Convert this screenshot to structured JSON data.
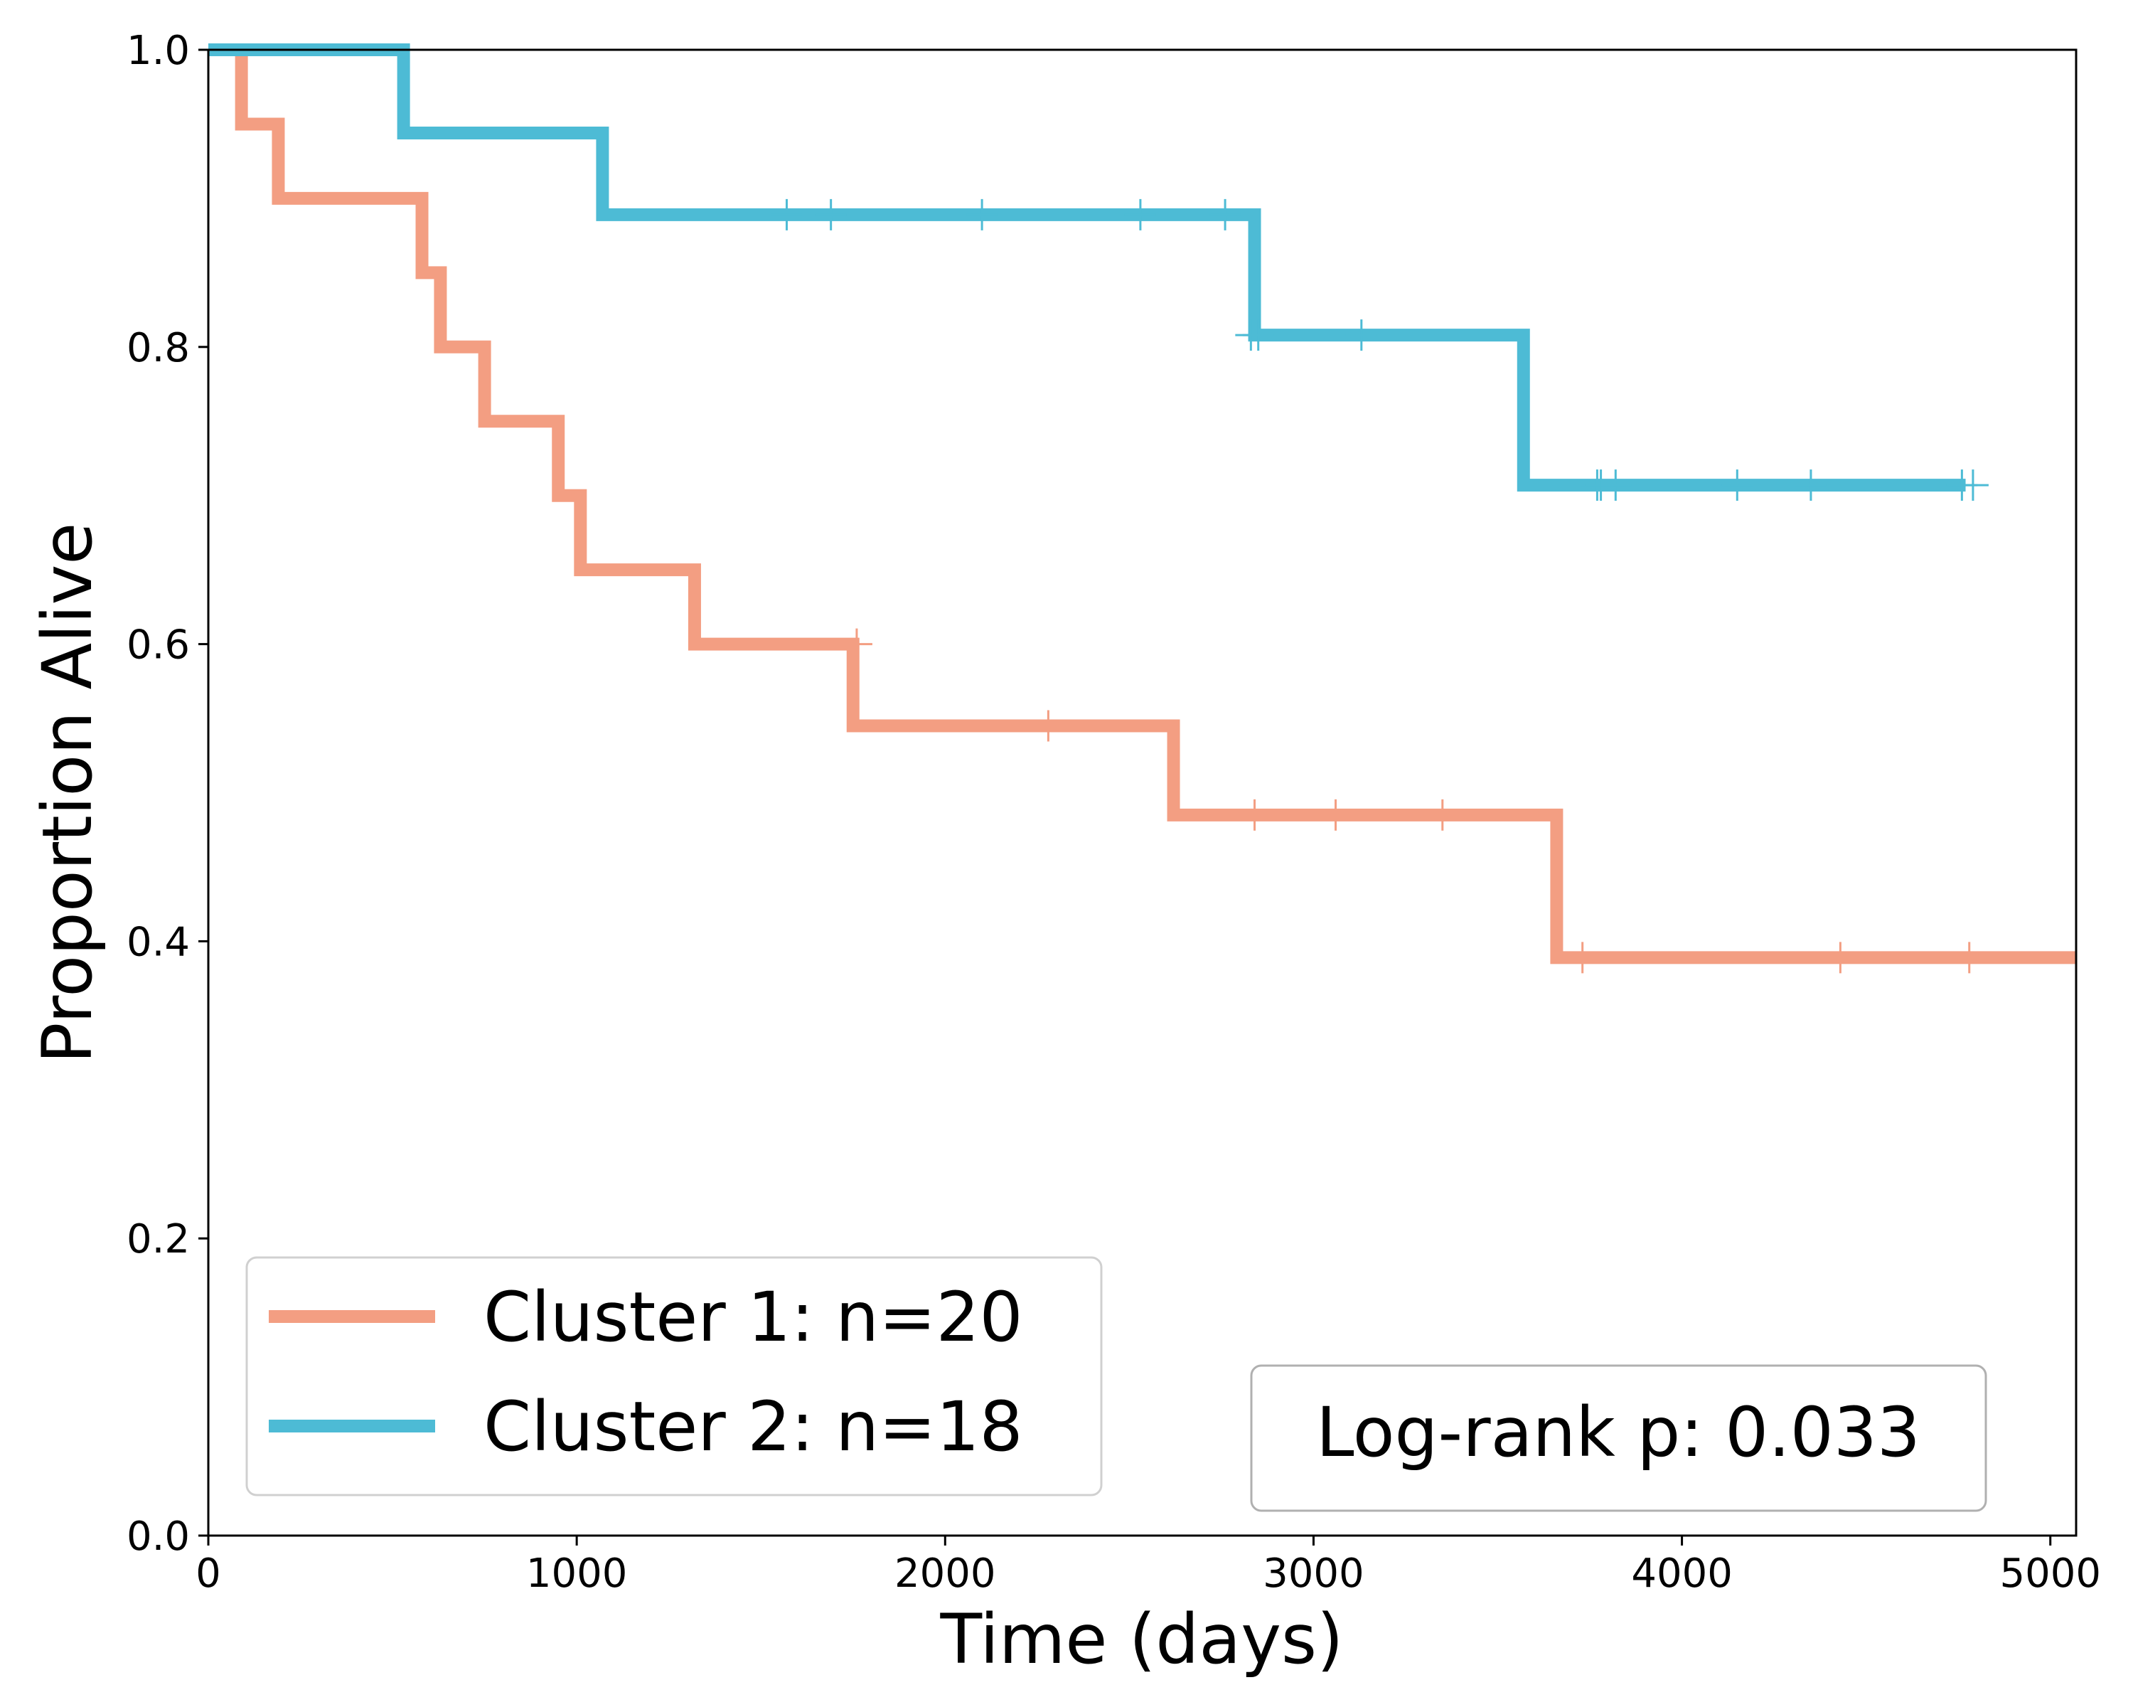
{
  "chart_data": {
    "type": "line",
    "xlabel": "Time (days)",
    "ylabel": "Proportion Alive",
    "xlim": [
      0,
      5070
    ],
    "ylim": [
      0,
      1
    ],
    "x_ticks": [
      0,
      1000,
      2000,
      3000,
      4000,
      5000
    ],
    "y_ticks": [
      0.0,
      0.2,
      0.4,
      0.6,
      0.8,
      1.0
    ],
    "x_tick_labels": [
      "0",
      "1000",
      "2000",
      "3000",
      "4000",
      "5000"
    ],
    "y_tick_labels": [
      "0.0",
      "0.2",
      "0.4",
      "0.6",
      "0.8",
      "1.0"
    ],
    "grid": false,
    "legend_position": "bottom-left",
    "annotation": "Log-rank p: 0.033",
    "series": [
      {
        "name": "Cluster 1: n=20",
        "color": "#f39e82",
        "steps": [
          [
            0,
            1.0
          ],
          [
            90,
            0.95
          ],
          [
            190,
            0.9
          ],
          [
            580,
            0.85
          ],
          [
            630,
            0.8
          ],
          [
            750,
            0.75
          ],
          [
            950,
            0.7
          ],
          [
            1010,
            0.65
          ],
          [
            1320,
            0.6
          ],
          [
            1750,
            0.545
          ],
          [
            2620,
            0.485
          ],
          [
            3660,
            0.389
          ],
          [
            5070,
            0.389
          ]
        ],
        "censored": [
          [
            1760,
            0.6
          ],
          [
            2280,
            0.545
          ],
          [
            2840,
            0.485
          ],
          [
            3060,
            0.485
          ],
          [
            3350,
            0.485
          ],
          [
            3730,
            0.389
          ],
          [
            4430,
            0.389
          ],
          [
            4780,
            0.389
          ]
        ]
      },
      {
        "name": "Cluster 2: n=18",
        "color": "#4dbbd5",
        "steps": [
          [
            0,
            1.0
          ],
          [
            530,
            0.944
          ],
          [
            1070,
            0.889
          ],
          [
            2840,
            0.808
          ],
          [
            3570,
            0.707
          ],
          [
            4770,
            0.707
          ]
        ],
        "censored": [
          [
            1570,
            0.889
          ],
          [
            1690,
            0.889
          ],
          [
            2100,
            0.889
          ],
          [
            2530,
            0.889
          ],
          [
            2760,
            0.889
          ],
          [
            2830,
            0.808
          ],
          [
            2850,
            0.808
          ],
          [
            3130,
            0.808
          ],
          [
            3770,
            0.707
          ],
          [
            3780,
            0.707
          ],
          [
            3820,
            0.707
          ],
          [
            4150,
            0.707
          ],
          [
            4350,
            0.707
          ],
          [
            4760,
            0.707
          ],
          [
            4790,
            0.707
          ]
        ]
      }
    ]
  }
}
